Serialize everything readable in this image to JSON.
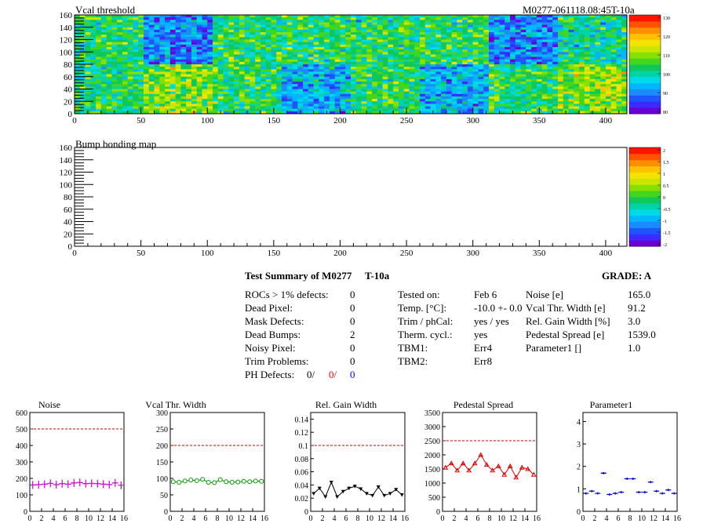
{
  "top_map": {
    "title": "Vcal threshold",
    "module_label": "M0277-061118.08:45T-10a",
    "x_ticks": [
      "0",
      "50",
      "100",
      "150",
      "200",
      "250",
      "300",
      "350",
      "400"
    ],
    "y_ticks": [
      "0",
      "20",
      "40",
      "60",
      "80",
      "100",
      "120",
      "140",
      "160"
    ],
    "scale_ticks": [
      "120",
      "110",
      "100",
      "90",
      "80",
      "130"
    ]
  },
  "bump_map": {
    "title": "Bump bonding map",
    "x_ticks": [
      "0",
      "50",
      "100",
      "150",
      "200",
      "250",
      "300",
      "350",
      "400"
    ],
    "y_ticks": [
      "0",
      "20",
      "40",
      "60",
      "80",
      "100",
      "120",
      "140",
      "160"
    ],
    "scale_ticks": [
      "2",
      "1.5",
      "1",
      "0.5",
      "0",
      "-0.5",
      "-1",
      "-1.5",
      "-2"
    ]
  },
  "summary": {
    "title": "Test Summary of M0277",
    "temp_label": "T-10a",
    "grade": "GRADE:  A",
    "defects": [
      {
        "label": "ROCs > 1% defects:",
        "value": "0"
      },
      {
        "label": "Dead Pixel:",
        "value": "0"
      },
      {
        "label": "Mask Defects:",
        "value": "0"
      },
      {
        "label": "Dead Bumps:",
        "value": "2"
      },
      {
        "label": "Noisy Pixel:",
        "value": "0"
      },
      {
        "label": "Trim Problems:",
        "value": "0"
      }
    ],
    "ph_defects_label": "PH Defects:",
    "ph_defects_values": [
      "0/",
      "0/",
      "0"
    ],
    "ph_defects_colors": [
      "#000000",
      "#ff0000",
      "#0000ff"
    ],
    "tests": [
      {
        "label": "Tested on:",
        "value": "Feb 6"
      },
      {
        "label": "Temp. [°C]:",
        "value": "-10.0 +- 0.0"
      },
      {
        "label": "Trim / phCal:",
        "value": "yes / yes"
      },
      {
        "label": "Therm. cycl.:",
        "value": "yes"
      },
      {
        "label": "TBM1:",
        "value": "Err4"
      },
      {
        "label": "TBM2:",
        "value": "Err8"
      }
    ],
    "metrics": [
      {
        "label": "Noise [e]",
        "value": "165.0"
      },
      {
        "label": "Vcal Thr. Width [e]",
        "value": "91.2"
      },
      {
        "label": "Rel. Gain Width [%]",
        "value": "3.0"
      },
      {
        "label": "Pedestal Spread [e]",
        "value": "1539.0"
      },
      {
        "label": "Parameter1 []",
        "value": "1.0"
      }
    ]
  },
  "chart_data": [
    {
      "type": "scatter",
      "title": "Noise",
      "color": "#cc00cc",
      "marker": "plus",
      "x": [
        0,
        1,
        2,
        3,
        4,
        5,
        6,
        7,
        8,
        9,
        10,
        11,
        12,
        13,
        14,
        15
      ],
      "values": [
        160,
        162,
        165,
        170,
        162,
        168,
        165,
        172,
        175,
        168,
        170,
        168,
        165,
        162,
        172,
        158
      ],
      "ylim": [
        0,
        600
      ],
      "xlim": [
        0,
        16
      ],
      "ref_line": 500,
      "y_ticks": [
        0,
        100,
        200,
        300,
        400,
        500,
        600
      ],
      "x_ticks": [
        0,
        2,
        4,
        6,
        8,
        10,
        12,
        14,
        16
      ]
    },
    {
      "type": "line",
      "title": "Vcal Thr. Width",
      "color": "#009900",
      "marker": "circle",
      "x": [
        0,
        1,
        2,
        3,
        4,
        5,
        6,
        7,
        8,
        9,
        10,
        11,
        12,
        13,
        14,
        15
      ],
      "values": [
        90,
        88,
        92,
        95,
        93,
        97,
        88,
        87,
        96,
        90,
        88,
        89,
        91,
        90,
        92,
        91
      ],
      "ylim": [
        0,
        300
      ],
      "xlim": [
        0,
        16
      ],
      "ref_line": 200,
      "y_ticks": [
        0,
        50,
        100,
        150,
        200,
        250,
        300
      ],
      "x_ticks": [
        0,
        2,
        4,
        6,
        8,
        10,
        12,
        14,
        16
      ]
    },
    {
      "type": "line",
      "title": "Rel. Gain Width",
      "color": "#000000",
      "marker": "triangle-down",
      "x": [
        0,
        1,
        2,
        3,
        4,
        5,
        6,
        7,
        8,
        9,
        10,
        11,
        12,
        13,
        14,
        15
      ],
      "values": [
        0.027,
        0.035,
        0.022,
        0.044,
        0.022,
        0.03,
        0.035,
        0.038,
        0.034,
        0.027,
        0.024,
        0.037,
        0.024,
        0.027,
        0.033,
        0.025
      ],
      "ylim": [
        0,
        0.15
      ],
      "xlim": [
        0,
        16
      ],
      "ref_line": 0.1,
      "y_ticks": [
        0,
        0.02,
        0.04,
        0.06,
        0.08,
        0.1,
        0.12,
        0.14
      ],
      "x_ticks": [
        0,
        2,
        4,
        6,
        8,
        10,
        12,
        14,
        16
      ]
    },
    {
      "type": "line",
      "title": "Pedestal Spread",
      "color": "#dd0000",
      "marker": "triangle-up",
      "x": [
        0,
        1,
        2,
        3,
        4,
        5,
        6,
        7,
        8,
        9,
        10,
        11,
        12,
        13,
        14,
        15
      ],
      "values": [
        1550,
        1700,
        1450,
        1700,
        1450,
        1700,
        2000,
        1650,
        1450,
        1600,
        1300,
        1600,
        1200,
        1550,
        1500,
        1300
      ],
      "ylim": [
        0,
        3500
      ],
      "xlim": [
        0,
        16
      ],
      "ref_line": 2500,
      "y_ticks": [
        0,
        500,
        1000,
        1500,
        2000,
        2500,
        3000,
        3500
      ],
      "x_ticks": [
        0,
        2,
        4,
        6,
        8,
        10,
        12,
        14,
        16
      ]
    },
    {
      "type": "scatter",
      "title": "Parameter1",
      "color": "#0000cc",
      "marker": "hbar",
      "x": [
        0,
        1,
        2,
        3,
        4,
        5,
        6,
        7,
        8,
        9,
        10,
        11,
        12,
        13,
        14,
        15
      ],
      "values": [
        0.8,
        0.9,
        0.8,
        1.7,
        0.75,
        0.8,
        0.85,
        1.45,
        1.45,
        0.85,
        0.85,
        1.3,
        0.9,
        0.8,
        0.95,
        0.8
      ],
      "ylim": [
        0,
        4.4
      ],
      "xlim": [
        0,
        16
      ],
      "ref_line": null,
      "y_ticks": [
        0,
        1,
        2,
        3,
        4
      ],
      "x_ticks": [
        0,
        2,
        4,
        6,
        8,
        10,
        12,
        14,
        16
      ]
    }
  ]
}
